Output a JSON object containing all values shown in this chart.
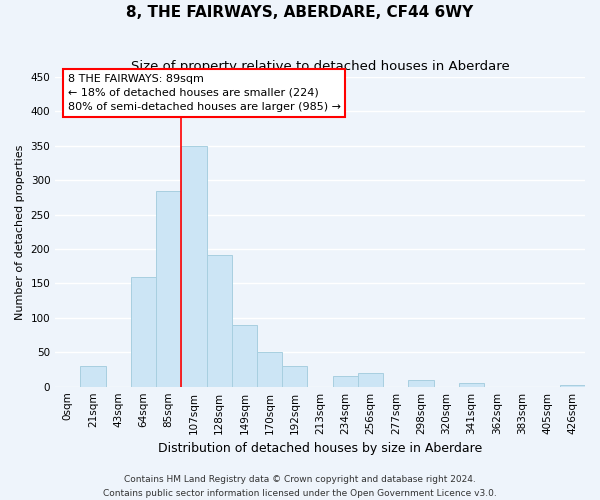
{
  "title": "8, THE FAIRWAYS, ABERDARE, CF44 6WY",
  "subtitle": "Size of property relative to detached houses in Aberdare",
  "xlabel": "Distribution of detached houses by size in Aberdare",
  "ylabel": "Number of detached properties",
  "footer_line1": "Contains HM Land Registry data © Crown copyright and database right 2024.",
  "footer_line2": "Contains public sector information licensed under the Open Government Licence v3.0.",
  "bin_labels": [
    "0sqm",
    "21sqm",
    "43sqm",
    "64sqm",
    "85sqm",
    "107sqm",
    "128sqm",
    "149sqm",
    "170sqm",
    "192sqm",
    "213sqm",
    "234sqm",
    "256sqm",
    "277sqm",
    "298sqm",
    "320sqm",
    "341sqm",
    "362sqm",
    "383sqm",
    "405sqm",
    "426sqm"
  ],
  "bar_heights": [
    0,
    30,
    0,
    160,
    285,
    350,
    192,
    90,
    50,
    30,
    0,
    15,
    20,
    0,
    10,
    0,
    5,
    0,
    0,
    0,
    2
  ],
  "bar_color": "#cce5f5",
  "bar_edge_color": "#a8cfe0",
  "red_line_x": 4.5,
  "annotation_title": "8 THE FAIRWAYS: 89sqm",
  "annotation_line1": "← 18% of detached houses are smaller (224)",
  "annotation_line2": "80% of semi-detached houses are larger (985) →",
  "ylim": [
    0,
    450
  ],
  "yticks": [
    0,
    50,
    100,
    150,
    200,
    250,
    300,
    350,
    400,
    450
  ],
  "bg_color": "#eef4fb",
  "grid_color": "#ffffff",
  "title_fontsize": 11,
  "subtitle_fontsize": 9.5,
  "ylabel_fontsize": 8,
  "xlabel_fontsize": 9,
  "tick_fontsize": 7.5,
  "footer_fontsize": 6.5
}
